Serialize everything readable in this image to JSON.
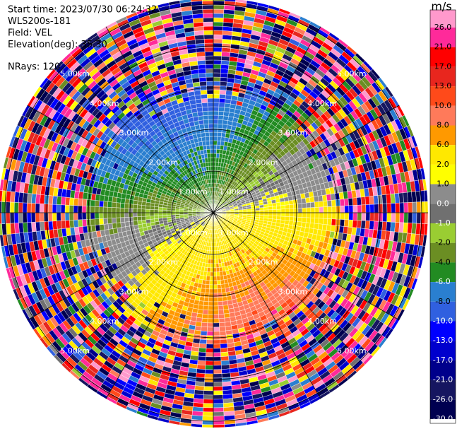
{
  "chart_data": {
    "type": "ppi",
    "info": [
      "Start time: 2023/07/30 06:24:32",
      "WLS200s-181",
      "Field: VEL",
      "Elevation(deg): 35.30",
      "NRays: 120"
    ],
    "range_labels": [
      "1.00km",
      "2.00km",
      "3.00km",
      "4.00km",
      "5.00km"
    ],
    "colorbar": {
      "title": "m/s",
      "ticks": [
        {
          "value": 26,
          "label": "26.0"
        },
        {
          "value": 21,
          "label": "21.0"
        },
        {
          "value": 17,
          "label": "17.0"
        },
        {
          "value": 13,
          "label": "13.0"
        },
        {
          "value": 10,
          "label": "10.0"
        },
        {
          "value": 8,
          "label": "8.0"
        },
        {
          "value": 6,
          "label": "6.0"
        },
        {
          "value": 2,
          "label": "2.0"
        },
        {
          "value": 1,
          "label": "1.0"
        },
        {
          "value": 0,
          "label": "0.0"
        },
        {
          "value": -1,
          "label": "-1.0"
        },
        {
          "value": -2,
          "label": "-2.0"
        },
        {
          "value": -4,
          "label": "-4.0"
        },
        {
          "value": -6,
          "label": "-6.0"
        },
        {
          "value": -8,
          "label": "-8.0"
        },
        {
          "value": -10,
          "label": "-10.0"
        },
        {
          "value": -13,
          "label": "-13.0"
        },
        {
          "value": -17,
          "label": "-17.0"
        },
        {
          "value": -21,
          "label": "-21.0"
        },
        {
          "value": -26,
          "label": "-26.0"
        },
        {
          "value": -30,
          "label": "-30.0"
        }
      ],
      "colors": [
        "#ff99cc",
        "#ff2a9a",
        "#ff0000",
        "#e8261e",
        "#ff4a1a",
        "#ff7a5a",
        "#ff9900",
        "#ffe800",
        "#ffff00",
        "#8c8c8c",
        "#707070",
        "#9acd32",
        "#6b8e23",
        "#228b22",
        "#2a7fd0",
        "#3060e0",
        "#0000ff",
        "#0000cd",
        "#00008b",
        "#161660",
        "#000050"
      ]
    }
  }
}
